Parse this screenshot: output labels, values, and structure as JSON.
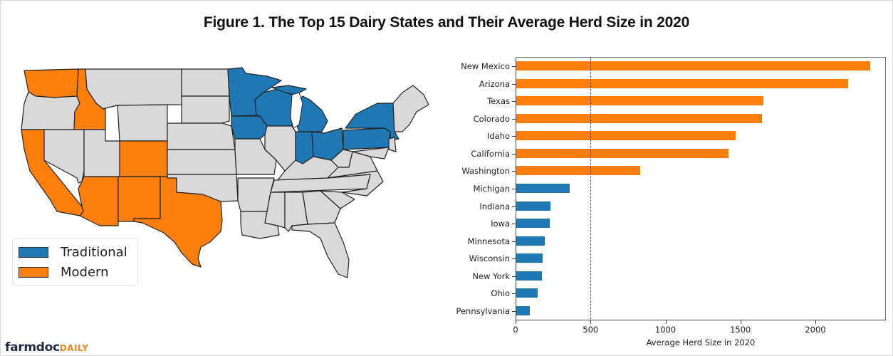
{
  "title": "Figure 1. The Top 15 Dairy States and Their Average Herd Size in 2020",
  "legend": {
    "items": [
      {
        "label": "Traditional",
        "color": "#1f77b4"
      },
      {
        "label": "Modern",
        "color": "#ff7f0e"
      }
    ]
  },
  "map": {
    "traditional_states": [
      "Minnesota",
      "Wisconsin",
      "Iowa",
      "Michigan",
      "Indiana",
      "Ohio",
      "Pennsylvania",
      "New York"
    ],
    "modern_states": [
      "Washington",
      "Idaho",
      "California",
      "Arizona",
      "New Mexico",
      "Colorado",
      "Texas"
    ],
    "other_color": "#d9d9d9"
  },
  "logo": {
    "part1": "farmdoc",
    "part2": "DAILY"
  },
  "colors": {
    "traditional": "#1f77b4",
    "modern": "#ff7f0e",
    "other": "#d9d9d9"
  },
  "chart_data": {
    "type": "bar",
    "orientation": "horizontal",
    "title": "Figure 1. The Top 15 Dairy States and Their Average Herd Size in 2020",
    "xlabel": "Average Herd Size in 2020",
    "ylabel": "",
    "xlim": [
      0,
      2470
    ],
    "xticks": [
      0,
      500,
      1000,
      1500,
      2000
    ],
    "reference_line": {
      "x": 500,
      "style": "dotted"
    },
    "categories": [
      "New Mexico",
      "Arizona",
      "Texas",
      "Colorado",
      "Idaho",
      "California",
      "Washington",
      "Michigan",
      "Indiana",
      "Iowa",
      "Minnesota",
      "Wisconsin",
      "New York",
      "Ohio",
      "Pennsylvania"
    ],
    "values": [
      2360,
      2215,
      1650,
      1640,
      1465,
      1415,
      825,
      357,
      229,
      224,
      190,
      176,
      171,
      143,
      90
    ],
    "groups": [
      "Modern",
      "Modern",
      "Modern",
      "Modern",
      "Modern",
      "Modern",
      "Modern",
      "Traditional",
      "Traditional",
      "Traditional",
      "Traditional",
      "Traditional",
      "Traditional",
      "Traditional",
      "Traditional"
    ],
    "legend": [
      "Traditional",
      "Modern"
    ],
    "legend_position": "lower left (map panel)",
    "grid": false
  }
}
